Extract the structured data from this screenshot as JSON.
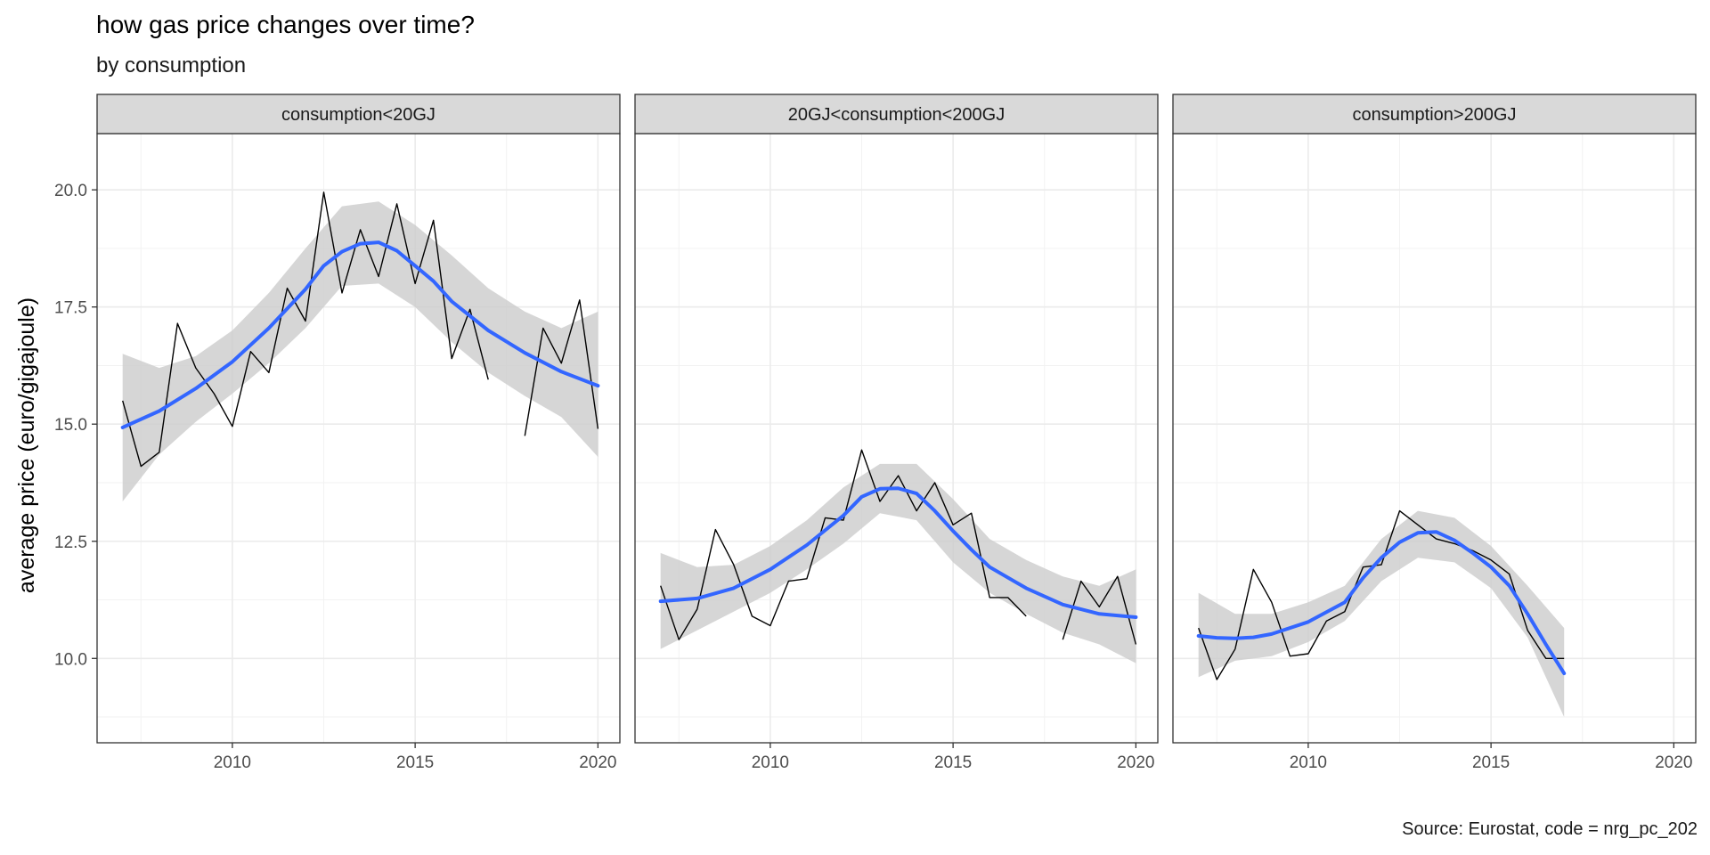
{
  "chart_data": {
    "type": "line",
    "title": "how gas price changes over time?",
    "subtitle": "by consumption",
    "caption": "Source: Eurostat, code = nrg_pc_202",
    "ylabel": "average price (euro/gigajoule)",
    "xlabel": "",
    "xlim": [
      2006.3,
      2020.6
    ],
    "ylim": [
      8.2,
      21.2
    ],
    "x_ticks": [
      2010,
      2015,
      2020
    ],
    "x_tick_labels": [
      "2010",
      "2015",
      "2020"
    ],
    "y_ticks": [
      10.0,
      12.5,
      15.0,
      17.5,
      20.0
    ],
    "y_tick_labels": [
      "10.0",
      "12.5",
      "15.0",
      "17.5",
      "20.0"
    ],
    "grid": true,
    "colors": {
      "observed": "#000000",
      "smooth": "#3366FF",
      "ribbon": "#cccccc",
      "strip": "#d9d9d9",
      "grid": "#ebebeb"
    },
    "panels": [
      {
        "label": "consumption<20GJ",
        "observed": [
          [
            2007.0,
            15.5
          ],
          [
            2007.5,
            14.1
          ],
          [
            2008.0,
            14.4
          ],
          [
            2008.5,
            17.15
          ],
          [
            2009.0,
            16.2
          ],
          [
            2009.5,
            15.65
          ],
          [
            2010.0,
            14.95
          ],
          [
            2010.5,
            16.55
          ],
          [
            2011.0,
            16.1
          ],
          [
            2011.5,
            17.9
          ],
          [
            2012.0,
            17.2
          ],
          [
            2012.5,
            19.95
          ],
          [
            2013.0,
            17.8
          ],
          [
            2013.5,
            19.15
          ],
          [
            2014.0,
            18.15
          ],
          [
            2014.5,
            19.7
          ],
          [
            2015.0,
            18.0
          ],
          [
            2015.5,
            19.35
          ],
          [
            2016.0,
            16.4
          ],
          [
            2016.5,
            17.45
          ],
          [
            2017.0,
            15.95
          ],
          null,
          [
            2018.0,
            14.75
          ],
          [
            2018.5,
            17.05
          ],
          [
            2019.0,
            16.3
          ],
          [
            2019.5,
            17.65
          ],
          [
            2020.0,
            14.9
          ]
        ],
        "smooth": [
          [
            2007.0,
            14.93
          ],
          [
            2008.0,
            15.28
          ],
          [
            2009.0,
            15.76
          ],
          [
            2010.0,
            16.33
          ],
          [
            2011.0,
            17.05
          ],
          [
            2012.0,
            17.88
          ],
          [
            2012.5,
            18.38
          ],
          [
            2013.0,
            18.68
          ],
          [
            2013.5,
            18.85
          ],
          [
            2014.0,
            18.88
          ],
          [
            2014.5,
            18.7
          ],
          [
            2015.0,
            18.38
          ],
          [
            2015.5,
            18.05
          ],
          [
            2016.0,
            17.62
          ],
          [
            2017.0,
            17.0
          ],
          [
            2018.0,
            16.52
          ],
          [
            2019.0,
            16.12
          ],
          [
            2020.0,
            15.82
          ]
        ],
        "ribbon_upper": [
          [
            2007.0,
            16.5
          ],
          [
            2008.0,
            16.2
          ],
          [
            2009.0,
            16.45
          ],
          [
            2010.0,
            17.0
          ],
          [
            2011.0,
            17.8
          ],
          [
            2012.0,
            18.75
          ],
          [
            2013.0,
            19.65
          ],
          [
            2014.0,
            19.75
          ],
          [
            2015.0,
            19.25
          ],
          [
            2016.0,
            18.6
          ],
          [
            2017.0,
            17.9
          ],
          [
            2018.0,
            17.4
          ],
          [
            2019.0,
            17.05
          ],
          [
            2020.0,
            17.4
          ]
        ],
        "ribbon_lower": [
          [
            2007.0,
            13.35
          ],
          [
            2008.0,
            14.35
          ],
          [
            2009.0,
            15.05
          ],
          [
            2010.0,
            15.65
          ],
          [
            2011.0,
            16.3
          ],
          [
            2012.0,
            17.05
          ],
          [
            2013.0,
            17.95
          ],
          [
            2014.0,
            18.0
          ],
          [
            2015.0,
            17.5
          ],
          [
            2016.0,
            16.75
          ],
          [
            2017.0,
            16.1
          ],
          [
            2018.0,
            15.6
          ],
          [
            2019.0,
            15.15
          ],
          [
            2020.0,
            14.3
          ]
        ]
      },
      {
        "label": "20GJ<consumption<200GJ",
        "observed": [
          [
            2007.0,
            11.55
          ],
          [
            2007.5,
            10.4
          ],
          [
            2008.0,
            11.05
          ],
          [
            2008.5,
            12.75
          ],
          [
            2009.0,
            12.0
          ],
          [
            2009.5,
            10.9
          ],
          [
            2010.0,
            10.7
          ],
          [
            2010.5,
            11.65
          ],
          [
            2011.0,
            11.7
          ],
          [
            2011.5,
            13.0
          ],
          [
            2012.0,
            12.95
          ],
          [
            2012.5,
            14.45
          ],
          [
            2013.0,
            13.35
          ],
          [
            2013.5,
            13.9
          ],
          [
            2014.0,
            13.15
          ],
          [
            2014.5,
            13.75
          ],
          [
            2015.0,
            12.85
          ],
          [
            2015.5,
            13.1
          ],
          [
            2016.0,
            11.3
          ],
          [
            2016.5,
            11.3
          ],
          [
            2017.0,
            10.9
          ],
          null,
          [
            2018.0,
            10.4
          ],
          [
            2018.5,
            11.65
          ],
          [
            2019.0,
            11.1
          ],
          [
            2019.5,
            11.75
          ],
          [
            2020.0,
            10.3
          ]
        ],
        "smooth": [
          [
            2007.0,
            11.22
          ],
          [
            2008.0,
            11.28
          ],
          [
            2009.0,
            11.5
          ],
          [
            2010.0,
            11.9
          ],
          [
            2011.0,
            12.42
          ],
          [
            2012.0,
            13.05
          ],
          [
            2012.5,
            13.45
          ],
          [
            2013.0,
            13.62
          ],
          [
            2013.5,
            13.63
          ],
          [
            2014.0,
            13.52
          ],
          [
            2014.5,
            13.15
          ],
          [
            2015.0,
            12.72
          ],
          [
            2015.5,
            12.32
          ],
          [
            2016.0,
            11.95
          ],
          [
            2017.0,
            11.5
          ],
          [
            2018.0,
            11.15
          ],
          [
            2019.0,
            10.95
          ],
          [
            2020.0,
            10.88
          ]
        ],
        "ribbon_upper": [
          [
            2007.0,
            12.25
          ],
          [
            2008.0,
            11.95
          ],
          [
            2009.0,
            12.0
          ],
          [
            2010.0,
            12.4
          ],
          [
            2011.0,
            12.95
          ],
          [
            2012.0,
            13.65
          ],
          [
            2013.0,
            14.15
          ],
          [
            2014.0,
            14.15
          ],
          [
            2015.0,
            13.4
          ],
          [
            2016.0,
            12.55
          ],
          [
            2017.0,
            12.1
          ],
          [
            2018.0,
            11.75
          ],
          [
            2019.0,
            11.55
          ],
          [
            2020.0,
            11.9
          ]
        ],
        "ribbon_lower": [
          [
            2007.0,
            10.2
          ],
          [
            2008.0,
            10.6
          ],
          [
            2009.0,
            11.0
          ],
          [
            2010.0,
            11.4
          ],
          [
            2011.0,
            11.9
          ],
          [
            2012.0,
            12.45
          ],
          [
            2013.0,
            13.1
          ],
          [
            2014.0,
            12.95
          ],
          [
            2015.0,
            12.05
          ],
          [
            2016.0,
            11.4
          ],
          [
            2017.0,
            10.95
          ],
          [
            2018.0,
            10.55
          ],
          [
            2019.0,
            10.3
          ],
          [
            2020.0,
            9.9
          ]
        ]
      },
      {
        "label": "consumption>200GJ",
        "observed": [
          [
            2007.0,
            10.65
          ],
          [
            2007.5,
            9.55
          ],
          [
            2008.0,
            10.2
          ],
          [
            2008.5,
            11.9
          ],
          [
            2009.0,
            11.2
          ],
          [
            2009.5,
            10.05
          ],
          [
            2010.0,
            10.1
          ],
          [
            2010.5,
            10.8
          ],
          [
            2011.0,
            11.0
          ],
          [
            2011.5,
            11.95
          ],
          [
            2012.0,
            12.0
          ],
          [
            2012.5,
            13.15
          ],
          [
            2013.0,
            12.85
          ],
          [
            2013.5,
            12.55
          ],
          [
            2014.0,
            12.45
          ],
          [
            2014.5,
            12.3
          ],
          [
            2015.0,
            12.1
          ],
          [
            2015.5,
            11.8
          ],
          [
            2016.0,
            10.6
          ],
          [
            2016.5,
            10.0
          ],
          [
            2017.0,
            10.0
          ]
        ],
        "smooth": [
          [
            2007.0,
            10.48
          ],
          [
            2007.5,
            10.44
          ],
          [
            2008.0,
            10.43
          ],
          [
            2008.5,
            10.45
          ],
          [
            2009.0,
            10.52
          ],
          [
            2010.0,
            10.78
          ],
          [
            2011.0,
            11.2
          ],
          [
            2011.5,
            11.72
          ],
          [
            2012.0,
            12.15
          ],
          [
            2012.5,
            12.48
          ],
          [
            2013.0,
            12.68
          ],
          [
            2013.5,
            12.7
          ],
          [
            2014.0,
            12.52
          ],
          [
            2014.5,
            12.25
          ],
          [
            2015.0,
            11.95
          ],
          [
            2015.5,
            11.55
          ],
          [
            2016.0,
            10.95
          ],
          [
            2016.5,
            10.3
          ],
          [
            2017.0,
            9.68
          ]
        ],
        "ribbon_upper": [
          [
            2007.0,
            11.4
          ],
          [
            2008.0,
            10.95
          ],
          [
            2009.0,
            10.95
          ],
          [
            2010.0,
            11.2
          ],
          [
            2011.0,
            11.55
          ],
          [
            2012.0,
            12.55
          ],
          [
            2013.0,
            13.15
          ],
          [
            2014.0,
            13.0
          ],
          [
            2015.0,
            12.4
          ],
          [
            2016.0,
            11.55
          ],
          [
            2017.0,
            10.65
          ]
        ],
        "ribbon_lower": [
          [
            2007.0,
            9.6
          ],
          [
            2008.0,
            9.95
          ],
          [
            2009.0,
            10.05
          ],
          [
            2010.0,
            10.35
          ],
          [
            2011.0,
            10.8
          ],
          [
            2012.0,
            11.65
          ],
          [
            2013.0,
            12.15
          ],
          [
            2014.0,
            12.05
          ],
          [
            2015.0,
            11.5
          ],
          [
            2016.0,
            10.45
          ],
          [
            2017.0,
            8.75
          ]
        ]
      }
    ]
  }
}
